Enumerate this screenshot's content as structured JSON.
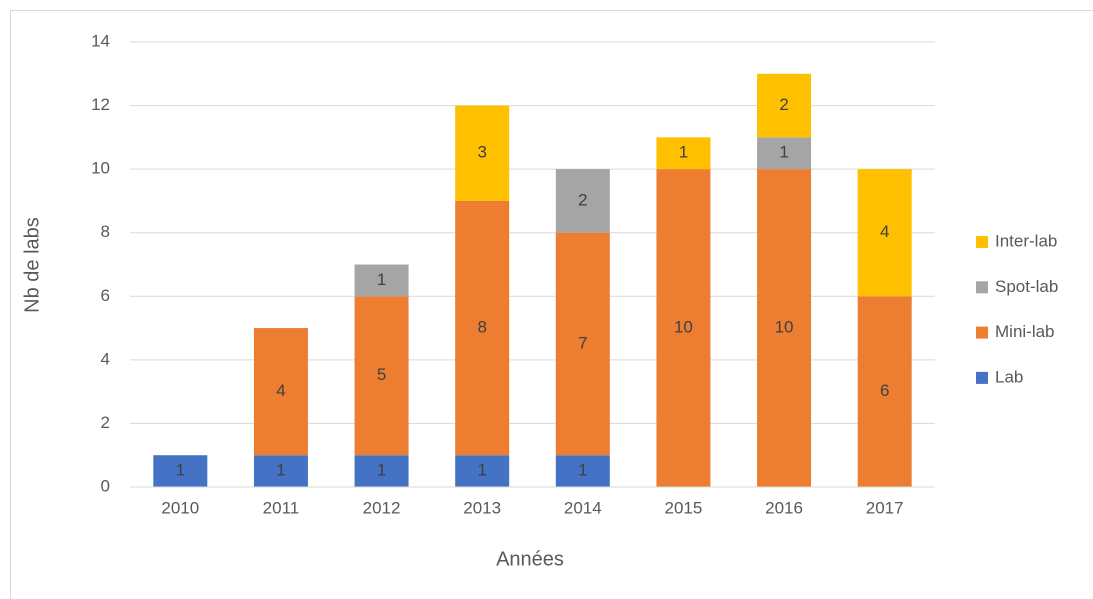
{
  "chart_data": {
    "type": "stacked_bar",
    "categories": [
      "2010",
      "2011",
      "2012",
      "2013",
      "2014",
      "2015",
      "2016",
      "2017"
    ],
    "series": [
      {
        "name": "Lab",
        "color": "#4472c4",
        "values": [
          1,
          1,
          1,
          1,
          1,
          null,
          null,
          null
        ]
      },
      {
        "name": "Mini-lab",
        "color": "#ed7d31",
        "values": [
          null,
          4,
          5,
          8,
          7,
          10,
          10,
          6
        ]
      },
      {
        "name": "Spot-lab",
        "color": "#a5a5a5",
        "values": [
          null,
          null,
          1,
          null,
          2,
          null,
          1,
          null
        ]
      },
      {
        "name": "Inter-lab",
        "color": "#ffc000",
        "values": [
          null,
          null,
          null,
          3,
          null,
          1,
          2,
          4
        ]
      }
    ],
    "x_label": "Années",
    "y_label": "Nb de labs",
    "ylim": [
      0,
      14
    ],
    "yticks": [
      0,
      2,
      4,
      6,
      8,
      10,
      12,
      14
    ],
    "grid": true,
    "legend": "right"
  }
}
